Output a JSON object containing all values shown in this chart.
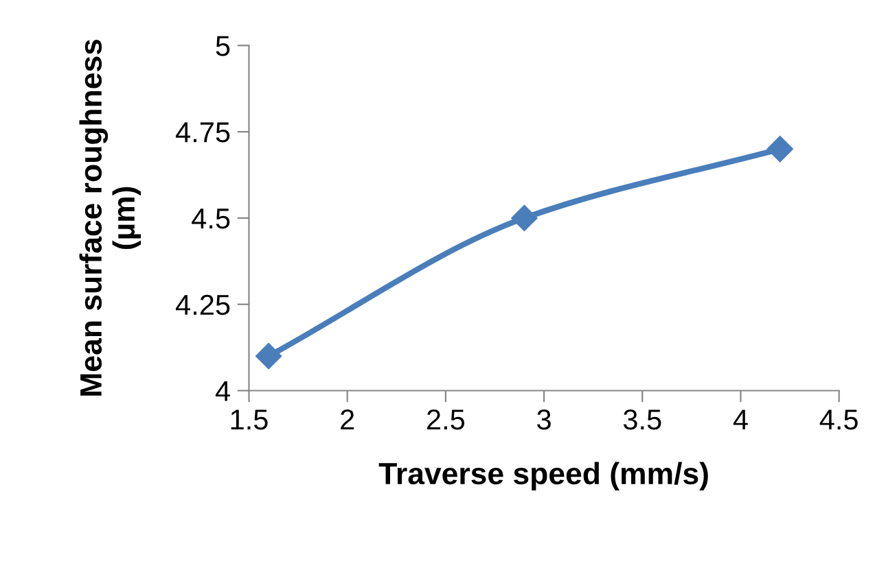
{
  "chart_data": {
    "type": "line",
    "xlabel": "Traverse speed (mm/s)",
    "ylabel": "Mean surface roughness\n(µm)",
    "x": [
      1.6,
      2.9,
      4.2
    ],
    "series": [
      {
        "color": "#4a7ebb",
        "values": [
          4.1,
          4.5,
          4.7
        ]
      }
    ],
    "marker": "diamond",
    "line_style": "solid",
    "xlim": [
      1.5,
      4.5
    ],
    "xticks": [
      1.5,
      2,
      2.5,
      3,
      3.5,
      4,
      4.5
    ],
    "ylim": [
      4,
      5
    ],
    "yticks": [
      4,
      4.25,
      4.5,
      4.75,
      5
    ],
    "grid": false,
    "legend": false
  }
}
